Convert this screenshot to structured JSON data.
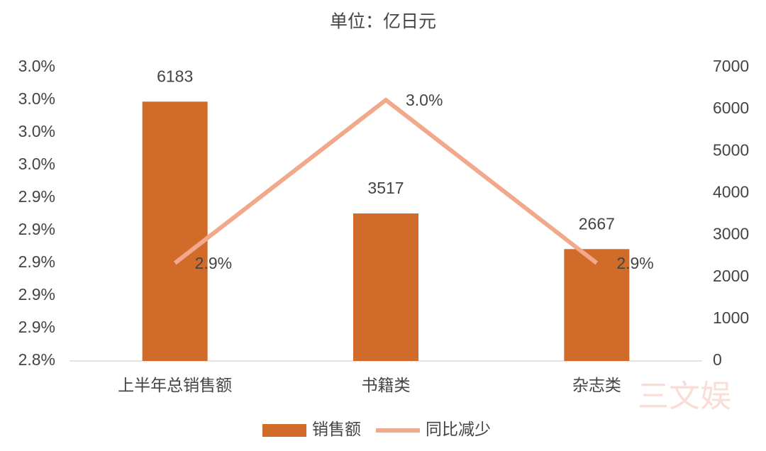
{
  "chart_data": {
    "type": "combo",
    "title": "单位：亿日元",
    "categories": [
      "上半年总销售额",
      "书籍类",
      "杂志类"
    ],
    "series": [
      {
        "name": "销售额",
        "type": "bar",
        "axis": "y2",
        "color": "#d06b2a",
        "values": [
          6183,
          3517,
          2667
        ]
      },
      {
        "name": "同比减少",
        "type": "line",
        "axis": "y",
        "color": "#f2a88a",
        "values": [
          2.9,
          3.0,
          2.9
        ],
        "value_labels": [
          "2.9%",
          "3.0%",
          "2.9%"
        ]
      }
    ],
    "ylim": [
      2.84,
      3.02
    ],
    "yticks": [
      {
        "value": 2.84,
        "label": "2.8%"
      },
      {
        "value": 2.86,
        "label": "2.9%"
      },
      {
        "value": 2.88,
        "label": "2.9%"
      },
      {
        "value": 2.9,
        "label": "2.9%"
      },
      {
        "value": 2.92,
        "label": "2.9%"
      },
      {
        "value": 2.94,
        "label": "2.9%"
      },
      {
        "value": 2.96,
        "label": "3.0%"
      },
      {
        "value": 2.98,
        "label": "3.0%"
      },
      {
        "value": 3.0,
        "label": "3.0%"
      },
      {
        "value": 3.02,
        "label": "3.0%"
      }
    ],
    "y2lim": [
      0,
      7000
    ],
    "y2ticks": [
      0,
      1000,
      2000,
      3000,
      4000,
      5000,
      6000,
      7000
    ],
    "legend": "bottom",
    "watermark": "三文娱"
  }
}
